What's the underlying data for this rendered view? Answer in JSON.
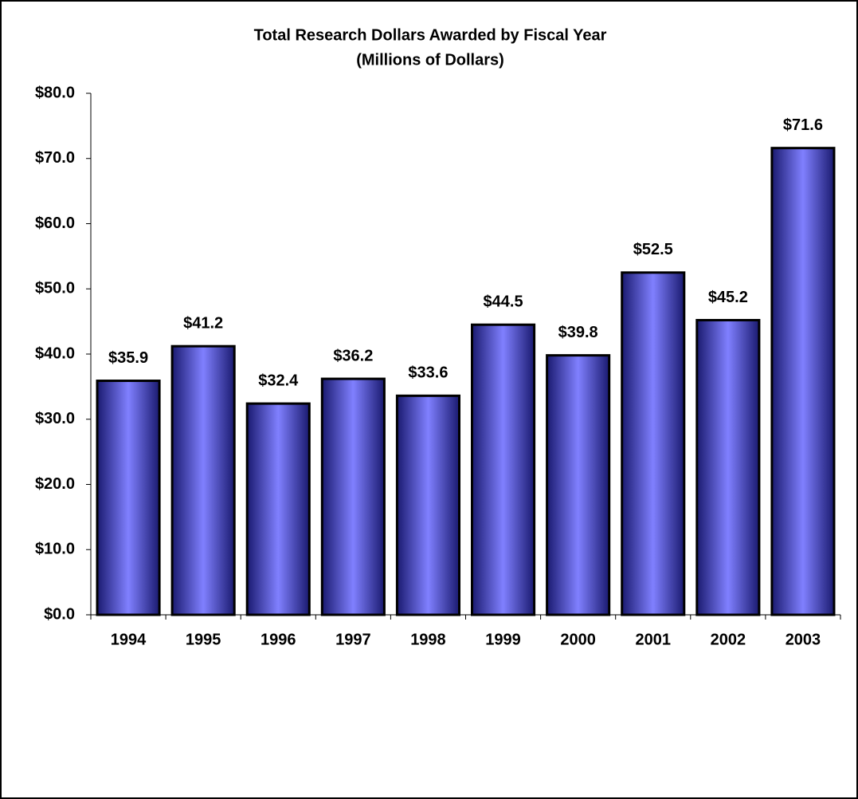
{
  "chart_data": {
    "type": "bar",
    "title": "Total Research Dollars Awarded by Fiscal Year",
    "subtitle": "(Millions of Dollars)",
    "categories": [
      "1994",
      "1995",
      "1996",
      "1997",
      "1998",
      "1999",
      "2000",
      "2001",
      "2002",
      "2003"
    ],
    "values": [
      35.9,
      41.2,
      32.4,
      36.2,
      33.6,
      44.5,
      39.8,
      52.5,
      45.2,
      71.6
    ],
    "value_labels": [
      "$35.9",
      "$41.2",
      "$32.4",
      "$36.2",
      "$33.6",
      "$44.5",
      "$39.8",
      "$52.5",
      "$45.2",
      "$71.6"
    ],
    "color": "#8080ff",
    "ylim": [
      0,
      80
    ],
    "yticks": [
      {
        "value": 0,
        "label": "$0.0"
      },
      {
        "value": 10,
        "label": "$10.0"
      },
      {
        "value": 20,
        "label": "$20.0"
      },
      {
        "value": 30,
        "label": "$30.0"
      },
      {
        "value": 40,
        "label": "$40.0"
      },
      {
        "value": 50,
        "label": "$50.0"
      },
      {
        "value": 60,
        "label": "$60.0"
      },
      {
        "value": 70,
        "label": "$70.0"
      },
      {
        "value": 80,
        "label": "$80.0"
      }
    ],
    "grid": false
  }
}
